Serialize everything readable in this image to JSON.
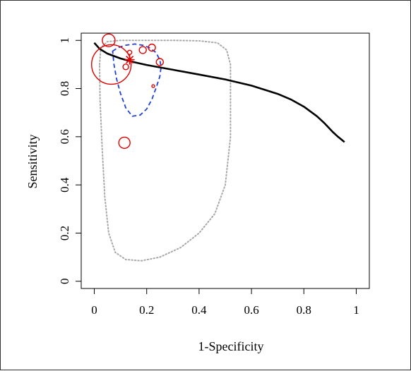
{
  "chart_data": {
    "type": "scatter",
    "title": "",
    "xlabel": "1-Specificity",
    "ylabel": "Sensitivity",
    "xlim": [
      -0.05,
      1.05
    ],
    "ylim": [
      -0.03,
      1.03
    ],
    "xticks": [
      0,
      0.2,
      0.4,
      0.6,
      0.8,
      1
    ],
    "xtick_labels": [
      "0",
      "0.2",
      "0.4",
      "0.6",
      "0.8",
      "1"
    ],
    "yticks": [
      0,
      0.2,
      0.4,
      0.6,
      0.8,
      1
    ],
    "ytick_labels": [
      "0",
      "0.2",
      "0.4",
      "0.6",
      "0.8",
      "1"
    ],
    "grid": false,
    "legend": "none",
    "sroc_curve": {
      "color": "#000000",
      "x": [
        0.0,
        0.02,
        0.05,
        0.1,
        0.15,
        0.2,
        0.3,
        0.4,
        0.5,
        0.6,
        0.7,
        0.75,
        0.8,
        0.85,
        0.88,
        0.91,
        0.93,
        0.955
      ],
      "y": [
        0.99,
        0.965,
        0.945,
        0.925,
        0.91,
        0.898,
        0.878,
        0.858,
        0.838,
        0.812,
        0.778,
        0.755,
        0.725,
        0.685,
        0.655,
        0.62,
        0.6,
        0.578
      ]
    },
    "summary_point": {
      "x": 0.135,
      "y": 0.92,
      "color": "#e00000"
    },
    "confidence_region": {
      "color": "#1f3fd8",
      "x": [
        0.07,
        0.09,
        0.12,
        0.155,
        0.185,
        0.21,
        0.235,
        0.25,
        0.255,
        0.25,
        0.235,
        0.22,
        0.2,
        0.175,
        0.145,
        0.12,
        0.1,
        0.085,
        0.075,
        0.07
      ],
      "y": [
        0.955,
        0.97,
        0.98,
        0.985,
        0.98,
        0.97,
        0.95,
        0.92,
        0.89,
        0.85,
        0.8,
        0.755,
        0.715,
        0.69,
        0.685,
        0.72,
        0.78,
        0.84,
        0.9,
        0.955
      ]
    },
    "prediction_region": {
      "color": "#a8a8a8",
      "x": [
        0.02,
        0.025,
        0.05,
        0.1,
        0.2,
        0.3,
        0.4,
        0.47,
        0.505,
        0.52,
        0.52,
        0.5,
        0.46,
        0.4,
        0.33,
        0.25,
        0.18,
        0.12,
        0.08,
        0.055,
        0.04,
        0.03,
        0.022,
        0.02
      ],
      "y": [
        0.9,
        0.97,
        0.995,
        1.0,
        1.0,
        1.0,
        0.998,
        0.99,
        0.96,
        0.9,
        0.6,
        0.4,
        0.28,
        0.2,
        0.14,
        0.1,
        0.085,
        0.09,
        0.12,
        0.2,
        0.35,
        0.55,
        0.75,
        0.9
      ]
    },
    "studies": {
      "color": "#e00000",
      "points": [
        {
          "x": 0.055,
          "y": 1.0,
          "size": 9
        },
        {
          "x": 0.065,
          "y": 0.9,
          "size": 28
        },
        {
          "x": 0.115,
          "y": 0.575,
          "size": 8
        },
        {
          "x": 0.12,
          "y": 0.89,
          "size": 4
        },
        {
          "x": 0.135,
          "y": 0.95,
          "size": 3
        },
        {
          "x": 0.185,
          "y": 0.96,
          "size": 5
        },
        {
          "x": 0.22,
          "y": 0.97,
          "size": 5
        },
        {
          "x": 0.25,
          "y": 0.91,
          "size": 5
        },
        {
          "x": 0.225,
          "y": 0.81,
          "size": 2
        }
      ]
    }
  }
}
